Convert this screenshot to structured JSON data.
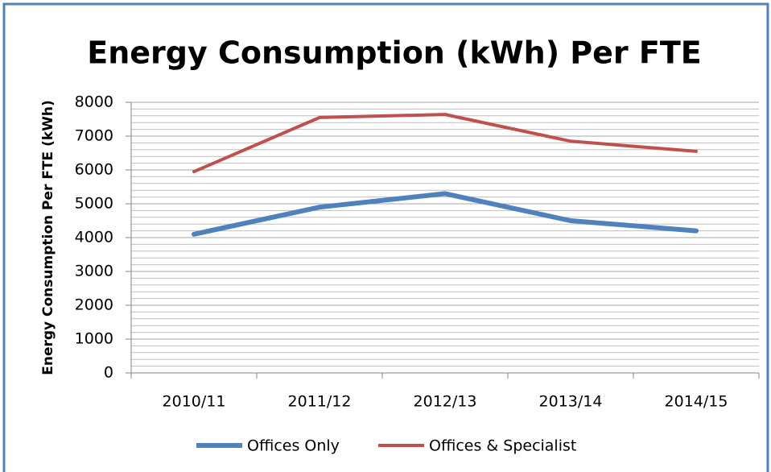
{
  "chart_data": {
    "type": "line",
    "title": "Energy Consumption (kWh) Per FTE",
    "y_label": "Energy Consumption Per FTE (kWh)",
    "categories": [
      "2010/11",
      "2011/12",
      "2012/13",
      "2013/14",
      "2014/15"
    ],
    "series": [
      {
        "name": "Offices Only",
        "color": "#4f81bd",
        "values": [
          4100,
          4900,
          5300,
          4500,
          4200
        ]
      },
      {
        "name": "Offices & Specialist",
        "color": "#c0504d",
        "values": [
          5950,
          7550,
          7640,
          6850,
          6550
        ]
      }
    ],
    "ylim": [
      0,
      8000
    ],
    "yticks": [
      0,
      1000,
      2000,
      3000,
      4000,
      5000,
      6000,
      7000,
      8000
    ],
    "grid": true,
    "minor_grid_step": 200,
    "legend": "bottom"
  }
}
